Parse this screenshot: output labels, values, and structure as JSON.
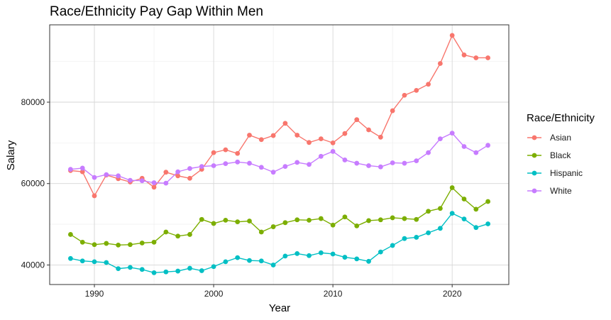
{
  "chart_data": {
    "type": "line",
    "title": "Race/Ethnicity Pay Gap Within Men",
    "xlabel": "Year",
    "ylabel": "Salary",
    "xlim": [
      1986.25,
      2024.75
    ],
    "ylim": [
      35200,
      99000
    ],
    "x_ticks": [
      1990,
      2000,
      2010,
      2020
    ],
    "y_ticks": [
      40000,
      60000,
      80000
    ],
    "y_tick_labels": [
      "40000",
      "60000",
      "80000"
    ],
    "grid": true,
    "legend": {
      "title": "Race/Ethnicity",
      "position": "right"
    },
    "x": [
      1988,
      1989,
      1990,
      1991,
      1992,
      1993,
      1994,
      1995,
      1996,
      1997,
      1998,
      1999,
      2000,
      2001,
      2002,
      2003,
      2004,
      2005,
      2006,
      2007,
      2008,
      2009,
      2010,
      2011,
      2012,
      2013,
      2014,
      2015,
      2016,
      2017,
      2018,
      2019,
      2020,
      2021,
      2022,
      2023
    ],
    "series": [
      {
        "name": "Asian",
        "color": "#F8766D",
        "values": [
          63200,
          62900,
          57000,
          62100,
          61200,
          60400,
          61300,
          59100,
          62800,
          61900,
          61300,
          63500,
          67600,
          68300,
          67400,
          71900,
          70800,
          71800,
          74800,
          71900,
          70100,
          71000,
          70000,
          72300,
          75700,
          73200,
          71400,
          77900,
          81700,
          82900,
          84400,
          89500,
          96400,
          91600,
          90900,
          90900
        ]
      },
      {
        "name": "Black",
        "color": "#7CAE00",
        "values": [
          47500,
          45600,
          45000,
          45300,
          44900,
          45000,
          45400,
          45600,
          48100,
          47100,
          47500,
          51200,
          50200,
          51000,
          50600,
          50800,
          48100,
          49400,
          50400,
          51100,
          51000,
          51400,
          49800,
          51800,
          49600,
          50900,
          51100,
          51600,
          51400,
          51200,
          53200,
          53900,
          59000,
          56200,
          53700,
          55600
        ]
      },
      {
        "name": "Hispanic",
        "color": "#00BFC4",
        "values": [
          41600,
          41000,
          40800,
          40600,
          39100,
          39400,
          38900,
          38100,
          38300,
          38500,
          39200,
          38600,
          39600,
          40800,
          41800,
          41100,
          41000,
          40000,
          42200,
          42800,
          42300,
          43000,
          42700,
          41900,
          41500,
          40900,
          43200,
          44800,
          46500,
          46800,
          47900,
          49000,
          52700,
          51300,
          49200,
          50100
        ]
      },
      {
        "name": "White",
        "color": "#C77CFF",
        "values": [
          63500,
          63800,
          61500,
          62200,
          61900,
          60800,
          60700,
          60200,
          60100,
          62900,
          63700,
          64200,
          64400,
          64900,
          65300,
          65000,
          64000,
          62800,
          64200,
          65200,
          64700,
          66700,
          67900,
          65800,
          65000,
          64400,
          64100,
          65100,
          65000,
          65600,
          67600,
          71000,
          72400,
          69100,
          67600,
          69400
        ]
      }
    ]
  }
}
